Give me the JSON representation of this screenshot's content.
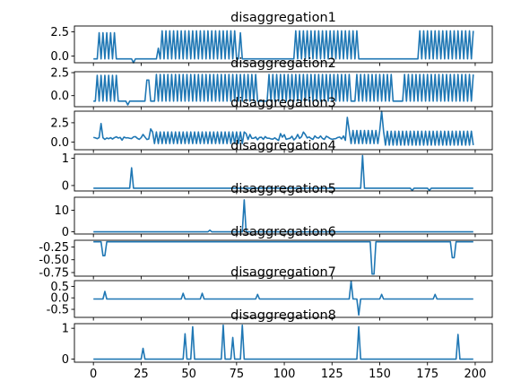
{
  "chart_data": [
    {
      "type": "line",
      "title": "disaggregation1",
      "ylim": [
        -0.7,
        3.1
      ],
      "yticks": [
        "2.5",
        "0.0"
      ],
      "ytick_values": [
        2.5,
        0.0
      ],
      "xlim": [
        -9.95,
        208.95
      ],
      "xticks": [],
      "color": "#1f77b4",
      "series": [
        {
          "values": []
        }
      ],
      "segments": [
        [
          0,
          -0.3,
          "flat"
        ],
        [
          3,
          -0.3,
          "osc",
          2.4,
          -0.3,
          2
        ],
        [
          12,
          -0.3,
          "flat"
        ],
        [
          20,
          -0.3,
          "flat"
        ],
        [
          21,
          -0.7,
          "pt"
        ],
        [
          22,
          -0.3,
          "flat"
        ],
        [
          33,
          -0.3,
          "flat"
        ],
        [
          34,
          0.8,
          "pt"
        ],
        [
          35,
          -0.3,
          "flat"
        ],
        [
          36,
          -0.3,
          "osc",
          2.6,
          -0.3,
          2
        ],
        [
          75,
          -0.3,
          "flat"
        ],
        [
          77,
          2.4,
          "pt"
        ],
        [
          78,
          -0.3,
          "flat"
        ],
        [
          104,
          -0.3,
          "flat"
        ],
        [
          106,
          -0.3,
          "osc",
          2.6,
          -0.3,
          2
        ],
        [
          140,
          -0.3,
          "flat"
        ],
        [
          170,
          -0.3,
          "flat"
        ],
        [
          171,
          -0.3,
          "osc",
          2.6,
          -0.3,
          2
        ],
        [
          200,
          -0.3,
          "flat"
        ]
      ]
    },
    {
      "type": "line",
      "title": "disaggregation2",
      "ylim": [
        -1.2,
        2.6
      ],
      "yticks": [
        "2.5",
        "0.0"
      ],
      "ytick_values": [
        2.5,
        0.0
      ],
      "xlim": [
        -9.95,
        208.95
      ],
      "xticks": [],
      "color": "#1f77b4",
      "series": [
        {
          "values": []
        }
      ],
      "segments": [
        [
          0,
          -0.6,
          "flat"
        ],
        [
          2,
          -0.6,
          "osc",
          2.2,
          -0.6,
          2
        ],
        [
          14,
          -0.6,
          "flat"
        ],
        [
          17,
          -0.6,
          "flat"
        ],
        [
          18,
          -1.0,
          "pt"
        ],
        [
          19,
          -0.6,
          "flat"
        ],
        [
          26,
          -0.6,
          "flat"
        ],
        [
          28,
          1.7,
          "pt"
        ],
        [
          30,
          -0.6,
          "flat"
        ],
        [
          33,
          -0.6,
          "osc",
          2.3,
          -0.6,
          2
        ],
        [
          86,
          -0.6,
          "flat"
        ],
        [
          92,
          -0.6,
          "osc",
          2.3,
          -0.6,
          2
        ],
        [
          135,
          -0.6,
          "flat"
        ],
        [
          138,
          -0.6,
          "osc",
          2.3,
          -0.6,
          2
        ],
        [
          158,
          -0.6,
          "flat"
        ],
        [
          161,
          -0.6,
          "flat"
        ],
        [
          163,
          -0.6,
          "osc",
          2.3,
          -0.6,
          2
        ],
        [
          200,
          -0.6,
          "flat"
        ]
      ]
    },
    {
      "type": "line",
      "title": "disaggregation3",
      "ylim": [
        -1.0,
        4.0
      ],
      "yticks": [
        "2.5",
        "0.0"
      ],
      "ytick_values": [
        2.5,
        0.0
      ],
      "xlim": [
        -9.95,
        208.95
      ],
      "xticks": [],
      "color": "#1f77b4",
      "series": [
        {
          "values": []
        }
      ],
      "segments": [
        [
          0,
          0.6,
          "noise",
          0.8,
          0.2
        ],
        [
          4,
          2.4,
          "pt"
        ],
        [
          5,
          0.5,
          "noise",
          0.7,
          0.3
        ],
        [
          30,
          1.7,
          "pt"
        ],
        [
          31,
          0.6,
          "osc",
          1.3,
          -0.2,
          2
        ],
        [
          80,
          0.5,
          "noise",
          1.0,
          0.3
        ],
        [
          133,
          3.2,
          "pt"
        ],
        [
          134,
          0.6,
          "osc",
          1.5,
          -0.2,
          2
        ],
        [
          151,
          4.1,
          "pt"
        ],
        [
          152,
          0.6,
          "osc",
          1.4,
          -0.4,
          2
        ],
        [
          200,
          0.7,
          "flat"
        ]
      ]
    },
    {
      "type": "line",
      "title": "disaggregation4",
      "ylim": [
        -0.2,
        1.15
      ],
      "yticks": [
        "1",
        "0"
      ],
      "ytick_values": [
        1,
        0
      ],
      "xlim": [
        -9.95,
        208.95
      ],
      "xticks": [],
      "color": "#1f77b4",
      "series": [
        {
          "values": []
        }
      ],
      "segments": [
        [
          0,
          -0.1,
          "flat"
        ],
        [
          19,
          -0.1,
          "flat"
        ],
        [
          20,
          0.65,
          "pt"
        ],
        [
          21,
          -0.1,
          "flat"
        ],
        [
          140,
          -0.1,
          "flat"
        ],
        [
          141,
          1.1,
          "pt"
        ],
        [
          142,
          -0.1,
          "flat"
        ],
        [
          166,
          -0.1,
          "flat"
        ],
        [
          167,
          -0.18,
          "pt"
        ],
        [
          168,
          -0.1,
          "flat"
        ],
        [
          175,
          -0.1,
          "flat"
        ],
        [
          176,
          -0.18,
          "pt"
        ],
        [
          177,
          -0.1,
          "flat"
        ],
        [
          200,
          -0.1,
          "flat"
        ]
      ]
    },
    {
      "type": "line",
      "title": "disaggregation5",
      "ylim": [
        -1,
        16
      ],
      "yticks": [
        "10",
        "0"
      ],
      "ytick_values": [
        10,
        0
      ],
      "xlim": [
        -9.95,
        208.95
      ],
      "xticks": [],
      "color": "#1f77b4",
      "series": [
        {
          "values": []
        }
      ],
      "segments": [
        [
          0,
          0.0,
          "flat"
        ],
        [
          60,
          0.0,
          "flat"
        ],
        [
          61,
          0.8,
          "pt"
        ],
        [
          62,
          0.0,
          "flat"
        ],
        [
          78,
          0.0,
          "flat"
        ],
        [
          79,
          14.8,
          "pt"
        ],
        [
          80,
          0.0,
          "flat"
        ],
        [
          200,
          0.0,
          "flat"
        ]
      ]
    },
    {
      "type": "line",
      "title": "disaggregation6",
      "ylim": [
        -0.82,
        -0.12
      ],
      "yticks": [
        "-0.25",
        "-0.50",
        "-0.75"
      ],
      "ytick_values": [
        -0.25,
        -0.5,
        -0.75
      ],
      "xlim": [
        -9.95,
        208.95
      ],
      "xticks": [],
      "color": "#1f77b4",
      "series": [
        {
          "values": []
        }
      ],
      "segments": [
        [
          0,
          -0.15,
          "flat"
        ],
        [
          3,
          -0.15,
          "flat"
        ],
        [
          5,
          -0.42,
          "pt"
        ],
        [
          7,
          -0.15,
          "flat"
        ],
        [
          144,
          -0.15,
          "flat"
        ],
        [
          146,
          -0.78,
          "pt"
        ],
        [
          148,
          -0.15,
          "flat"
        ],
        [
          186,
          -0.15,
          "flat"
        ],
        [
          188,
          -0.46,
          "pt"
        ],
        [
          190,
          -0.15,
          "flat"
        ],
        [
          200,
          -0.15,
          "flat"
        ]
      ]
    },
    {
      "type": "line",
      "title": "disaggregation7",
      "ylim": [
        -0.85,
        0.75
      ],
      "yticks": [
        "0.5",
        "0.0",
        "-0.5"
      ],
      "ytick_values": [
        0.5,
        0.0,
        -0.5
      ],
      "xlim": [
        -9.95,
        208.95
      ],
      "xticks": [],
      "color": "#1f77b4",
      "series": [
        {
          "values": []
        }
      ],
      "segments": [
        [
          0,
          -0.05,
          "flat"
        ],
        [
          5,
          -0.05,
          "flat"
        ],
        [
          6,
          0.28,
          "pt"
        ],
        [
          7,
          -0.05,
          "flat"
        ],
        [
          46,
          -0.05,
          "flat"
        ],
        [
          47,
          0.2,
          "pt"
        ],
        [
          48,
          -0.05,
          "flat"
        ],
        [
          56,
          -0.05,
          "flat"
        ],
        [
          57,
          0.2,
          "pt"
        ],
        [
          58,
          -0.05,
          "flat"
        ],
        [
          85,
          -0.05,
          "flat"
        ],
        [
          86,
          0.15,
          "pt"
        ],
        [
          87,
          -0.05,
          "flat"
        ],
        [
          134,
          -0.05,
          "flat"
        ],
        [
          135,
          0.72,
          "pt"
        ],
        [
          136,
          -0.05,
          "flat"
        ],
        [
          138,
          -0.05,
          "flat"
        ],
        [
          139,
          -0.75,
          "pt"
        ],
        [
          140,
          -0.05,
          "flat"
        ],
        [
          150,
          -0.05,
          "flat"
        ],
        [
          151,
          0.15,
          "pt"
        ],
        [
          152,
          -0.05,
          "flat"
        ],
        [
          178,
          -0.05,
          "flat"
        ],
        [
          179,
          0.15,
          "pt"
        ],
        [
          180,
          -0.05,
          "flat"
        ],
        [
          200,
          -0.05,
          "flat"
        ]
      ]
    },
    {
      "type": "line",
      "title": "disaggregation8",
      "ylim": [
        -0.1,
        1.15
      ],
      "yticks": [
        "1",
        "0"
      ],
      "ytick_values": [
        1,
        0
      ],
      "xlim": [
        -9.95,
        208.95
      ],
      "xticks": [
        "0",
        "25",
        "50",
        "75",
        "100",
        "125",
        "150",
        "175",
        "200"
      ],
      "xtick_values": [
        0,
        25,
        50,
        75,
        100,
        125,
        150,
        175,
        200
      ],
      "color": "#1f77b4",
      "series": [
        {
          "values": []
        }
      ],
      "segments": [
        [
          0,
          0.0,
          "flat"
        ],
        [
          25,
          0.0,
          "flat"
        ],
        [
          26,
          0.35,
          "pt"
        ],
        [
          27,
          0.0,
          "flat"
        ],
        [
          47,
          0.0,
          "flat"
        ],
        [
          48,
          0.82,
          "pt"
        ],
        [
          49,
          0.0,
          "flat"
        ],
        [
          51,
          0.0,
          "flat"
        ],
        [
          52,
          1.05,
          "pt"
        ],
        [
          53,
          0.0,
          "flat"
        ],
        [
          67,
          0.0,
          "flat"
        ],
        [
          68,
          1.1,
          "pt"
        ],
        [
          69,
          0.0,
          "flat"
        ],
        [
          72,
          0.0,
          "flat"
        ],
        [
          73,
          0.7,
          "pt"
        ],
        [
          74,
          0.0,
          "flat"
        ],
        [
          77,
          0.0,
          "flat"
        ],
        [
          78,
          1.1,
          "pt"
        ],
        [
          79,
          0.0,
          "flat"
        ],
        [
          138,
          0.0,
          "flat"
        ],
        [
          139,
          1.05,
          "pt"
        ],
        [
          140,
          0.0,
          "flat"
        ],
        [
          190,
          0.0,
          "flat"
        ],
        [
          191,
          0.8,
          "pt"
        ],
        [
          192,
          0.0,
          "flat"
        ],
        [
          200,
          0.0,
          "flat"
        ]
      ]
    }
  ]
}
